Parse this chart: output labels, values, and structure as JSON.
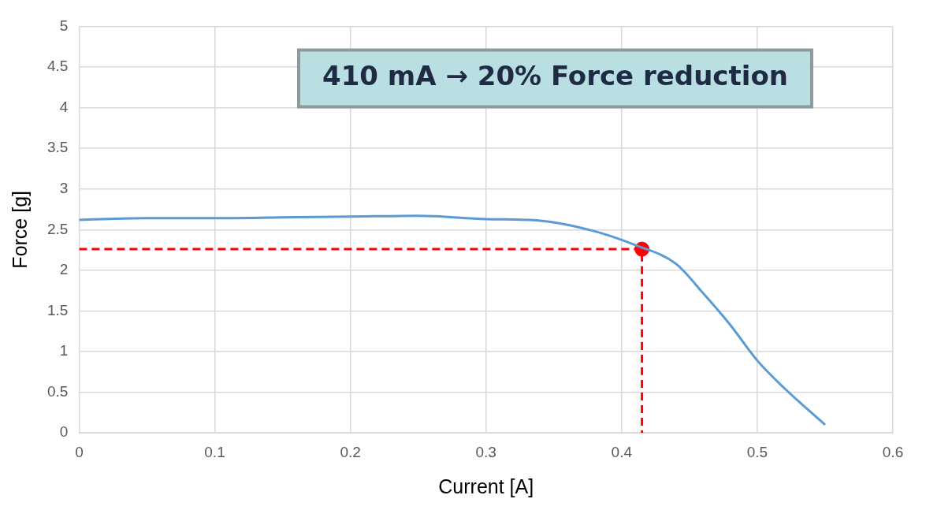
{
  "chart_data": {
    "type": "line",
    "xlabel": "Current [A]",
    "ylabel": "Force [g]",
    "xlim": [
      0,
      0.6
    ],
    "xticks": [
      0,
      0.1,
      0.2,
      0.3,
      0.4,
      0.5,
      0.6
    ],
    "ylim": [
      0,
      5
    ],
    "yticks": [
      0,
      0.5,
      1,
      1.5,
      2,
      2.5,
      3,
      3.5,
      4,
      4.5,
      5
    ],
    "grid": true,
    "legend": false,
    "marker": "none",
    "annotations": [
      "410 mA → 20% Force reduction"
    ],
    "series": [
      {
        "color": "#5b9bd5",
        "x": [
          0,
          0.05,
          0.1,
          0.15,
          0.2,
          0.25,
          0.3,
          0.34,
          0.38,
          0.41,
          0.44,
          0.46,
          0.48,
          0.5,
          0.52,
          0.55
        ],
        "values": [
          2.62,
          2.64,
          2.64,
          2.65,
          2.66,
          2.67,
          2.63,
          2.61,
          2.48,
          2.31,
          2.08,
          1.72,
          1.33,
          0.89,
          0.55,
          0.1
        ]
      },
      {
        "color": "#ff0000",
        "type": "line",
        "line_style": "dashed",
        "x": [
          0,
          0.415,
          0.415
        ],
        "values": [
          2.26,
          2.26,
          0
        ]
      },
      {
        "color": "#ff0000",
        "type": "scatter",
        "marker": "circle",
        "x": [
          0.415
        ],
        "values": [
          2.26
        ]
      }
    ]
  }
}
